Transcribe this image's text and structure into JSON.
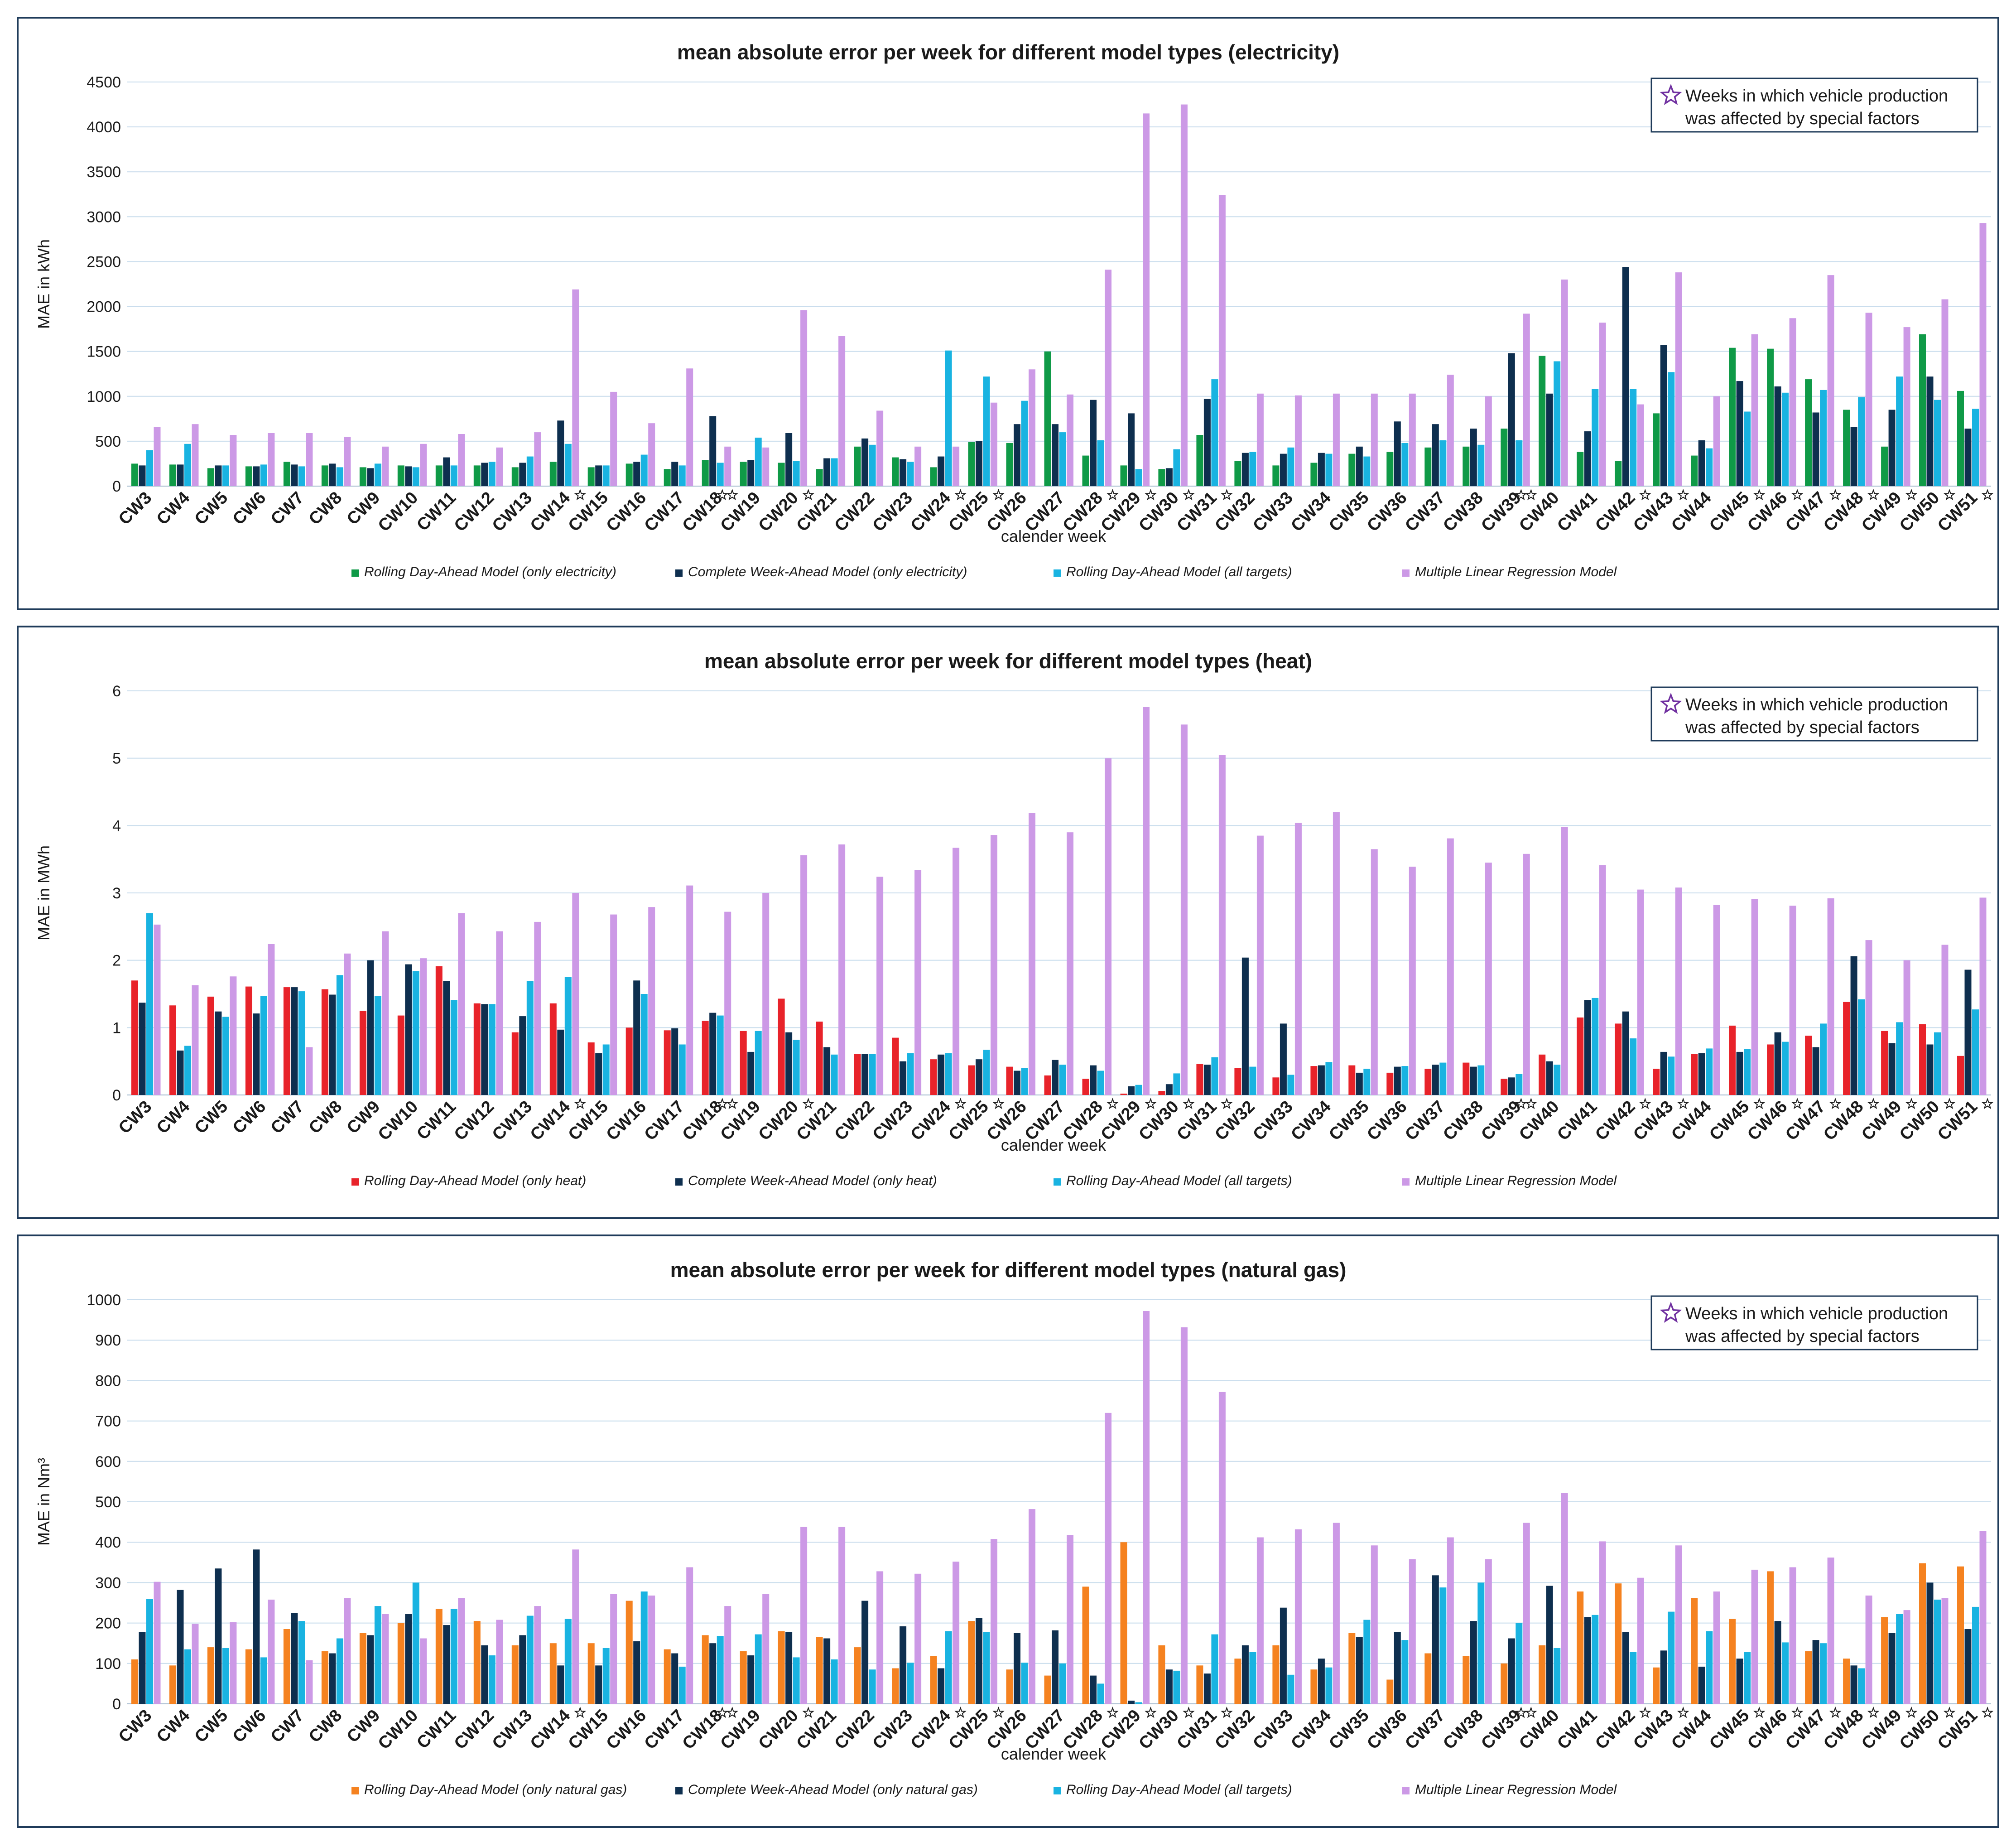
{
  "weeks": [
    "CW3",
    "CW4",
    "CW5",
    "CW6",
    "CW7",
    "CW8",
    "CW9",
    "CW10",
    "CW11",
    "CW12",
    "CW13",
    "CW14",
    "CW15",
    "CW16",
    "CW17",
    "CW18",
    "CW19",
    "CW20",
    "CW21",
    "CW22",
    "CW23",
    "CW24",
    "CW25",
    "CW26",
    "CW27",
    "CW28",
    "CW29",
    "CW30",
    "CW31",
    "CW32",
    "CW33",
    "CW34",
    "CW35",
    "CW36",
    "CW37",
    "CW38",
    "CW39",
    "CW40",
    "CW41",
    "CW42",
    "CW43",
    "CW44",
    "CW45",
    "CW46",
    "CW47",
    "CW48",
    "CW49",
    "CW50",
    "CW51"
  ],
  "special_weeks_note": {
    "line1": "Weeks in which vehicle production",
    "line2": "was affected by special factors",
    "single_star_weeks": [
      "CW14",
      "CW20",
      "CW24",
      "CW25",
      "CW28",
      "CW29",
      "CW30",
      "CW31",
      "CW42",
      "CW43",
      "CW45",
      "CW46",
      "CW47",
      "CW48",
      "CW49",
      "CW50",
      "CW51"
    ],
    "double_star_weeks": [
      "CW18",
      "CW39"
    ],
    "star_color": "#7030a0"
  },
  "colors": {
    "electricity_own": "#0f9a47",
    "heat_own": "#e8232a",
    "gas_own": "#f58220",
    "week_ahead": "#0e2f4f",
    "all_targets": "#19b3e1",
    "mlr": "#cc99e6",
    "frame": "#1f3b5a",
    "grid": "#c8dcec"
  },
  "chart_data": [
    {
      "type": "bar",
      "title": "mean absolute error per week for different model types (electricity)",
      "xlabel": "calender week",
      "ylabel": "MAE in kWh",
      "ylim": [
        0,
        4500
      ],
      "yticks": [
        0,
        500,
        1000,
        1500,
        2000,
        2500,
        3000,
        3500,
        4000,
        4500
      ],
      "grid": true,
      "legend_position": "bottom",
      "series": [
        {
          "name": "Rolling Day-Ahead Model (only electricity)",
          "color_key": "electricity_own",
          "values": [
            250,
            240,
            200,
            220,
            270,
            230,
            210,
            230,
            230,
            230,
            210,
            270,
            210,
            250,
            190,
            290,
            270,
            260,
            190,
            440,
            320,
            210,
            490,
            480,
            1500,
            340,
            230,
            190,
            570,
            280,
            230,
            260,
            360,
            380,
            430,
            440,
            640,
            1450,
            380,
            280,
            810,
            340,
            1540,
            1530,
            1190,
            850,
            440,
            1690,
            1060
          ]
        },
        {
          "name": "Complete Week-Ahead Model (only electricity)",
          "color_key": "week_ahead",
          "values": [
            230,
            240,
            230,
            220,
            240,
            250,
            200,
            220,
            320,
            260,
            260,
            730,
            230,
            270,
            270,
            780,
            290,
            590,
            310,
            530,
            300,
            330,
            500,
            690,
            690,
            960,
            810,
            200,
            970,
            370,
            360,
            370,
            440,
            720,
            690,
            640,
            1480,
            1030,
            610,
            2440,
            1570,
            510,
            1170,
            1110,
            820,
            660,
            850,
            1220,
            640
          ]
        },
        {
          "name": "Rolling Day-Ahead Model (all targets)",
          "color_key": "all_targets",
          "values": [
            400,
            470,
            230,
            240,
            220,
            210,
            250,
            210,
            230,
            270,
            330,
            470,
            230,
            350,
            230,
            260,
            540,
            280,
            310,
            460,
            270,
            1510,
            1220,
            950,
            600,
            510,
            190,
            410,
            1190,
            380,
            430,
            360,
            330,
            480,
            510,
            460,
            510,
            1390,
            1080,
            1080,
            1270,
            420,
            830,
            1040,
            1070,
            990,
            1220,
            960,
            860
          ]
        },
        {
          "name": "Multiple Linear Regression Model",
          "color_key": "mlr",
          "values": [
            660,
            690,
            570,
            590,
            590,
            550,
            440,
            470,
            580,
            430,
            600,
            2190,
            1050,
            700,
            1310,
            440,
            430,
            1960,
            1670,
            840,
            440,
            440,
            930,
            1300,
            1020,
            2410,
            4150,
            4250,
            3240,
            1030,
            1010,
            1030,
            1030,
            1030,
            1240,
            1000,
            1920,
            2300,
            1820,
            910,
            2380,
            1000,
            1690,
            1870,
            2350,
            1930,
            1770,
            2080,
            2930
          ]
        }
      ]
    },
    {
      "type": "bar",
      "title": "mean absolute error per week for different model types (heat)",
      "xlabel": "calender week",
      "ylabel": "MAE in MWh",
      "ylim": [
        0,
        6
      ],
      "yticks": [
        0,
        1,
        2,
        3,
        4,
        5,
        6
      ],
      "grid": true,
      "legend_position": "bottom",
      "series": [
        {
          "name": "Rolling Day-Ahead Model (only heat)",
          "color_key": "heat_own",
          "values": [
            1.7,
            1.33,
            1.46,
            1.61,
            1.6,
            1.57,
            1.25,
            1.18,
            1.91,
            1.36,
            0.93,
            1.36,
            0.78,
            1.0,
            0.96,
            1.1,
            0.95,
            1.43,
            1.09,
            0.61,
            0.85,
            0.53,
            0.44,
            0.42,
            0.29,
            0.24,
            0.02,
            0.06,
            0.46,
            0.4,
            0.26,
            0.43,
            0.44,
            0.33,
            0.39,
            0.48,
            0.24,
            0.6,
            1.15,
            1.06,
            0.39,
            0.61,
            1.03,
            0.75,
            0.88,
            1.38,
            0.95,
            1.05,
            0.58
          ]
        },
        {
          "name": "Complete Week-Ahead Model (only heat)",
          "color_key": "week_ahead",
          "values": [
            1.37,
            0.66,
            1.24,
            1.21,
            1.6,
            1.49,
            2.0,
            1.94,
            1.69,
            1.35,
            1.17,
            0.97,
            0.62,
            1.7,
            0.99,
            1.22,
            0.64,
            0.93,
            0.71,
            0.61,
            0.5,
            0.6,
            0.53,
            0.36,
            0.52,
            0.44,
            0.13,
            0.16,
            0.45,
            2.04,
            1.06,
            0.44,
            0.33,
            0.42,
            0.45,
            0.42,
            0.26,
            0.5,
            1.41,
            1.24,
            0.64,
            0.62,
            0.64,
            0.93,
            0.71,
            2.06,
            0.77,
            0.75,
            1.86
          ]
        },
        {
          "name": "Rolling Day-Ahead Model (all targets)",
          "color_key": "all_targets",
          "values": [
            2.7,
            0.73,
            1.16,
            1.47,
            1.54,
            1.78,
            1.47,
            1.84,
            1.41,
            1.35,
            1.69,
            1.75,
            0.75,
            1.5,
            0.75,
            1.18,
            0.95,
            0.82,
            0.6,
            0.61,
            0.62,
            0.62,
            0.67,
            0.4,
            0.45,
            0.36,
            0.15,
            0.32,
            0.56,
            0.42,
            0.3,
            0.49,
            0.39,
            0.43,
            0.48,
            0.44,
            0.31,
            0.45,
            1.44,
            0.84,
            0.57,
            0.69,
            0.68,
            0.79,
            1.06,
            1.42,
            1.08,
            0.93,
            1.27
          ]
        },
        {
          "name": "Multiple Linear Regression Model",
          "color_key": "mlr",
          "values": [
            2.53,
            1.63,
            1.76,
            2.24,
            0.71,
            2.1,
            2.43,
            2.03,
            2.7,
            2.43,
            2.57,
            3.0,
            2.68,
            2.79,
            3.11,
            2.72,
            3.0,
            3.56,
            3.72,
            3.24,
            3.34,
            3.67,
            3.86,
            4.19,
            3.9,
            5.0,
            5.76,
            5.5,
            5.05,
            3.85,
            4.04,
            4.2,
            3.65,
            3.39,
            3.81,
            3.45,
            3.58,
            3.98,
            3.41,
            3.05,
            3.08,
            2.82,
            2.91,
            2.81,
            2.92,
            2.3,
            2.0,
            2.23,
            2.93
          ]
        }
      ]
    },
    {
      "type": "bar",
      "title": "mean absolute error per week for different model types (natural gas)",
      "xlabel": "calender week",
      "ylabel": "MAE in Nm³",
      "ylim": [
        0,
        1000
      ],
      "yticks": [
        0,
        100,
        200,
        300,
        400,
        500,
        600,
        700,
        800,
        900,
        1000
      ],
      "grid": true,
      "legend_position": "bottom",
      "series": [
        {
          "name": "Rolling Day-Ahead Model (only natural gas)",
          "color_key": "gas_own",
          "values": [
            110,
            95,
            140,
            135,
            185,
            130,
            175,
            200,
            235,
            205,
            145,
            150,
            150,
            255,
            135,
            170,
            130,
            180,
            165,
            140,
            88,
            118,
            205,
            85,
            70,
            290,
            400,
            145,
            95,
            112,
            145,
            85,
            175,
            60,
            125,
            118,
            100,
            145,
            278,
            298,
            90,
            262,
            210,
            328,
            130,
            112,
            215,
            348,
            340
          ]
        },
        {
          "name": "Complete Week-Ahead Model (only natural gas)",
          "color_key": "week_ahead",
          "values": [
            178,
            282,
            335,
            382,
            225,
            125,
            170,
            222,
            195,
            145,
            170,
            95,
            95,
            155,
            125,
            150,
            120,
            178,
            162,
            255,
            192,
            88,
            212,
            175,
            182,
            70,
            8,
            85,
            75,
            145,
            238,
            112,
            165,
            178,
            318,
            205,
            162,
            292,
            215,
            178,
            132,
            92,
            112,
            205,
            158,
            95,
            175,
            300,
            185
          ]
        },
        {
          "name": "Rolling Day-Ahead Model (all targets)",
          "color_key": "all_targets",
          "values": [
            260,
            135,
            138,
            115,
            205,
            162,
            242,
            300,
            235,
            120,
            218,
            210,
            138,
            278,
            92,
            168,
            172,
            115,
            110,
            85,
            102,
            180,
            178,
            102,
            100,
            50,
            4,
            82,
            172,
            128,
            72,
            90,
            208,
            158,
            288,
            300,
            200,
            138,
            220,
            128,
            228,
            180,
            128,
            152,
            150,
            88,
            222,
            258,
            240
          ]
        },
        {
          "name": "Multiple Linear Regression Model",
          "color_key": "mlr",
          "values": [
            302,
            198,
            202,
            258,
            108,
            262,
            222,
            162,
            262,
            208,
            242,
            382,
            272,
            268,
            338,
            242,
            272,
            438,
            438,
            328,
            322,
            352,
            408,
            482,
            418,
            720,
            972,
            932,
            772,
            412,
            432,
            448,
            392,
            358,
            412,
            358,
            448,
            522,
            402,
            312,
            392,
            278,
            332,
            338,
            362,
            268,
            232,
            262,
            428
          ]
        }
      ]
    }
  ]
}
